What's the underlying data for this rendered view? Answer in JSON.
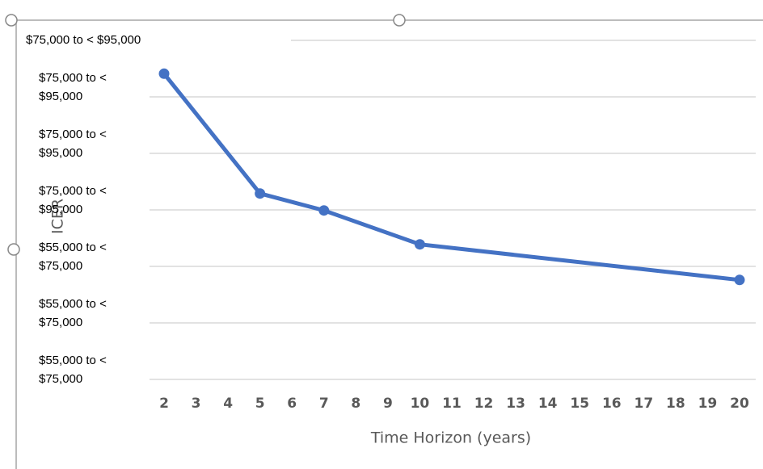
{
  "chart_data": {
    "type": "line",
    "x_label": "Time Horizon (years)",
    "y_label": "ICER",
    "x": [
      2,
      5,
      7,
      10,
      20
    ],
    "series": [
      {
        "name": "ICER",
        "color": "#4472c4",
        "values": [
          5.41,
          3.29,
          2.99,
          2.39,
          1.76
        ]
      }
    ],
    "xlim": [
      2,
      20
    ],
    "xticks": [
      2,
      3,
      4,
      5,
      6,
      7,
      8,
      9,
      10,
      11,
      12,
      13,
      14,
      15,
      16,
      17,
      18,
      19,
      20
    ],
    "ylim": [
      0,
      6
    ],
    "yticks": [
      {
        "value": 0,
        "label": "$55,000 to < $75,000"
      },
      {
        "value": 1,
        "label": "$55,000 to < $75,000"
      },
      {
        "value": 2,
        "label": "$55,000 to < $75,000"
      },
      {
        "value": 3,
        "label": "$75,000 to < $95,000"
      },
      {
        "value": 4,
        "label": "$75,000 to < $95,000"
      },
      {
        "value": 5,
        "label": "$75,000 to < $95,000"
      },
      {
        "value": 6,
        "label": "$75,000 to < $95,000"
      }
    ],
    "grid": true
  }
}
